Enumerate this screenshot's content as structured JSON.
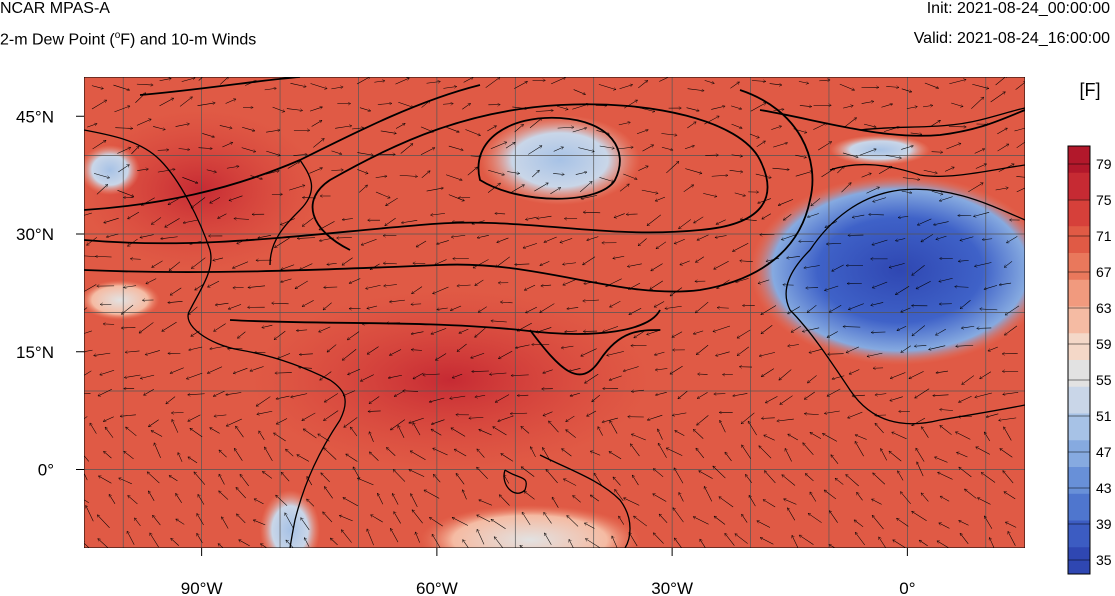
{
  "header": {
    "model": "NCAR MPAS-A",
    "field": "2-m Dew Point (",
    "field_sup": "o",
    "field_rest": "F) and 10-m Winds",
    "init": "Init: 2021-08-24_00:00:00",
    "valid": "Valid: 2021-08-24_16:00:00"
  },
  "map": {
    "lon_labels": [
      "90°W",
      "60°W",
      "30°W",
      "0°"
    ],
    "lat_labels": [
      "45°N",
      "30°N",
      "15°N",
      "0°"
    ],
    "lon_range": [
      -105,
      15
    ],
    "lat_range": [
      -10,
      50
    ]
  },
  "colorbar": {
    "units": "[F]",
    "tick_labels": [
      "79",
      "75",
      "71",
      "67",
      "63",
      "59",
      "55",
      "51",
      "47",
      "43",
      "39",
      "35"
    ],
    "colors": [
      "#b2182b",
      "#c62a33",
      "#d6403a",
      "#e05a45",
      "#e9785c",
      "#f19a7e",
      "#f5bba3",
      "#f4d8c8",
      "#e2e2e2",
      "#c9d6e8",
      "#a7c2e6",
      "#86aae0",
      "#6890d8",
      "#4f76ce",
      "#3c5cc2",
      "#2f47b2"
    ]
  }
}
